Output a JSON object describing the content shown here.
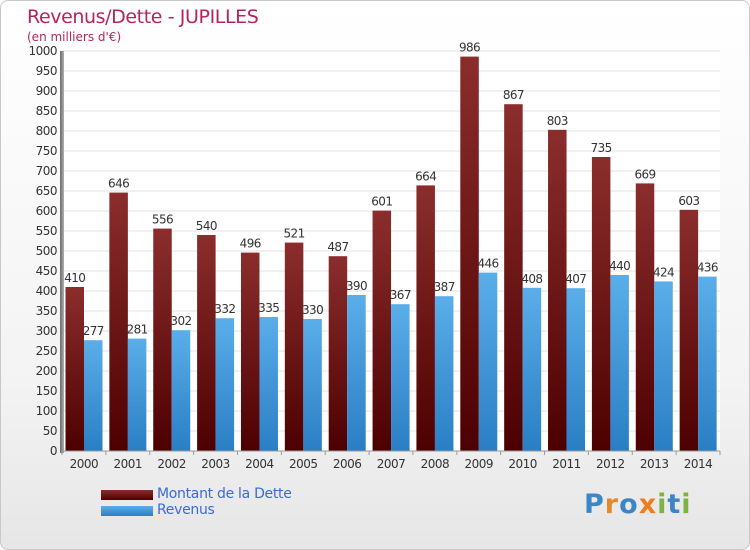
{
  "header": {
    "title": "Revenus/Dette - JUPILLES",
    "subtitle": "(en milliers d'€)"
  },
  "legend": {
    "debt_label": "Montant de la Dette",
    "revenue_label": "Revenus"
  },
  "logo": {
    "text": "Proxiti",
    "letters": [
      {
        "ch": "P",
        "color": "#3d86c6"
      },
      {
        "ch": "r",
        "color": "#e38a2a"
      },
      {
        "ch": "o",
        "color": "#3d86c6"
      },
      {
        "ch": "x",
        "color": "#ee7d1f"
      },
      {
        "ch": "i",
        "color": "#7cb342"
      },
      {
        "ch": "t",
        "color": "#3d86c6"
      },
      {
        "ch": "i",
        "color": "#7cb342"
      }
    ]
  },
  "colors": {
    "debt_top": "#8b2d2d",
    "debt_bottom": "#4d0000",
    "revenue_top": "#5aaee9",
    "revenue_bottom": "#2a7ec4",
    "plot_bg": "#ffffff",
    "grid": "#e3e3e3"
  },
  "chart_data": {
    "type": "bar",
    "title": "Revenus/Dette - JUPILLES",
    "subtitle": "(en milliers d'€)",
    "categories": [
      "2000",
      "2001",
      "2002",
      "2003",
      "2004",
      "2005",
      "2006",
      "2007",
      "2008",
      "2009",
      "2010",
      "2011",
      "2012",
      "2013",
      "2014"
    ],
    "series": [
      {
        "name": "Montant de la Dette",
        "values": [
          410,
          646,
          556,
          540,
          496,
          521,
          487,
          601,
          664,
          986,
          867,
          803,
          735,
          669,
          603
        ]
      },
      {
        "name": "Revenus",
        "values": [
          277,
          281,
          302,
          332,
          335,
          330,
          390,
          367,
          387,
          446,
          408,
          407,
          440,
          424,
          436
        ]
      }
    ],
    "yticks": [
      "0",
      "50",
      "100",
      "150",
      "200",
      "250",
      "300",
      "350",
      "400",
      "450",
      "500",
      "550",
      "600",
      "650",
      "700",
      "750",
      "800",
      "850",
      "900",
      "950",
      "1000"
    ],
    "ylim": [
      0,
      1000
    ],
    "grid": true,
    "legend_position": "bottom-left"
  }
}
